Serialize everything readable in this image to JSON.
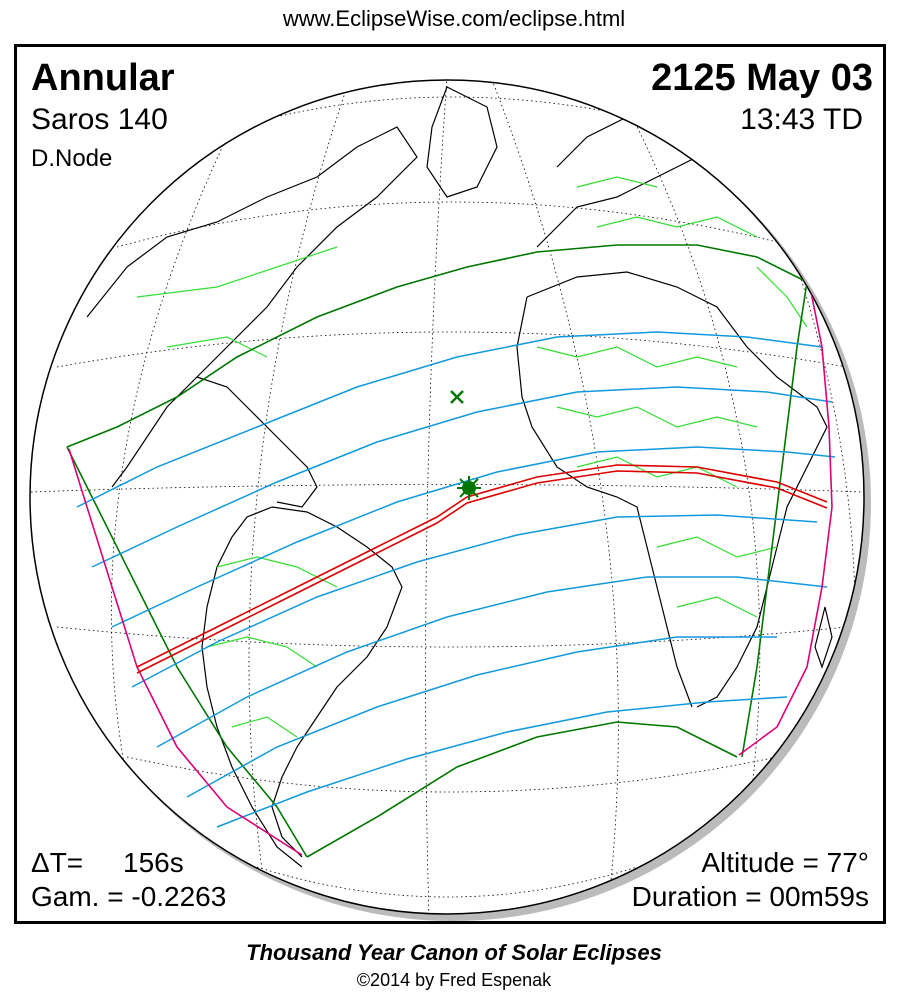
{
  "header": {
    "url": "www.EclipseWise.com/eclipse.html"
  },
  "eclipse": {
    "type": "Annular",
    "saros": "Saros 140",
    "node": "D.Node",
    "date": "2125 May 03",
    "time": "13:43 TD",
    "delta_t_label": "ΔT=",
    "delta_t_value": "156s",
    "gamma": "Gam. = -0.2263",
    "altitude": "Altitude = 77°",
    "duration": "Duration = 00m59s"
  },
  "footer": {
    "title": "Thousand Year Canon of Solar Eclipses",
    "copyright": "©2014 by Fred Espenak"
  },
  "colors": {
    "coastline": "#000000",
    "borders": "#33dd33",
    "graticule": "#000000",
    "central_path": "#dd0000",
    "penumbra_limits": "#007700",
    "time_lines": "#1199dd",
    "sunrise_sunset": "#dd0077",
    "greatest_eclipse": "#007700"
  },
  "symbols": {
    "greatest_eclipse": "star-burst-icon",
    "subsolar_point": "x-mark-icon"
  }
}
